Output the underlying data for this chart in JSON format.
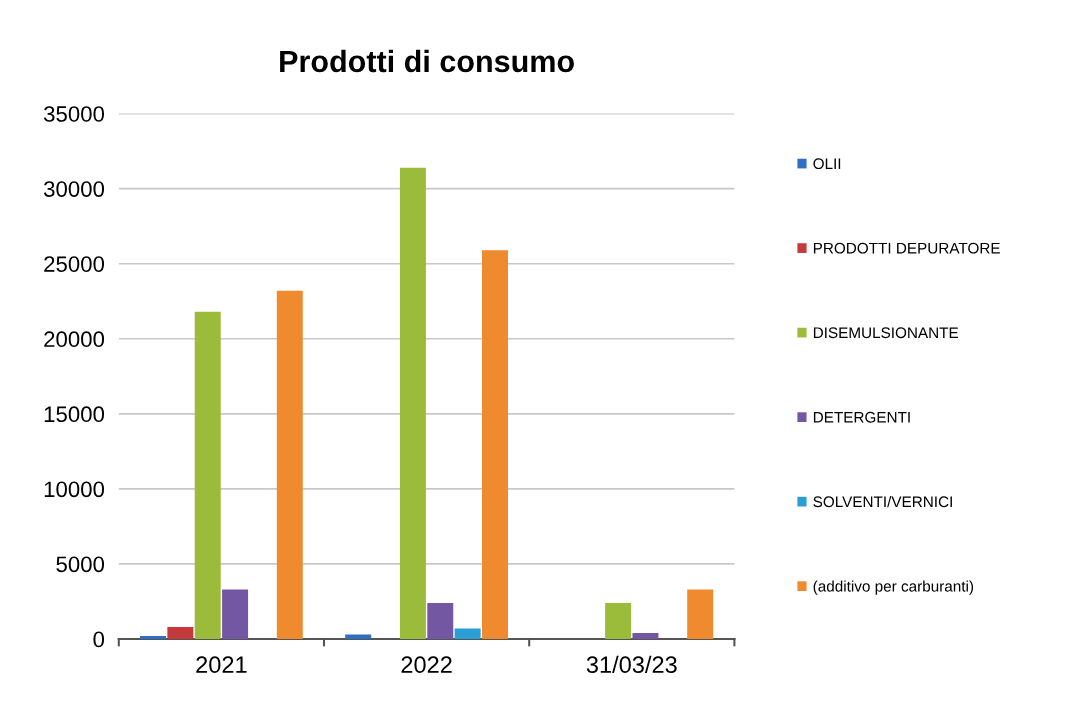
{
  "chart_data": {
    "type": "bar",
    "title": "Prodotti di consumo",
    "categories": [
      "2021",
      "2022",
      "31/03/23"
    ],
    "series": [
      {
        "name": "OLII",
        "color": "#2e6fc4",
        "values": [
          200,
          300,
          0
        ]
      },
      {
        "name": "PRODOTTI DEPURATORE",
        "color": "#c4393b",
        "values": [
          800,
          0,
          0
        ]
      },
      {
        "name": "DISEMULSIONANTE",
        "color": "#9bbb3b",
        "values": [
          21800,
          31400,
          2400
        ]
      },
      {
        "name": "DETERGENTI",
        "color": "#7457a3",
        "values": [
          3300,
          2400,
          400
        ]
      },
      {
        "name": "SOLVENTI/VERNICI",
        "color": "#2a9fd6",
        "values": [
          0,
          700,
          0
        ]
      },
      {
        "name": "(additivo per carburanti)",
        "color": "#f08a2e",
        "values": [
          23200,
          25900,
          3300
        ]
      }
    ],
    "ylim": [
      0,
      35000
    ],
    "yticks": [
      0,
      5000,
      10000,
      15000,
      20000,
      25000,
      30000,
      35000
    ],
    "grid": "y",
    "legend": "right"
  }
}
